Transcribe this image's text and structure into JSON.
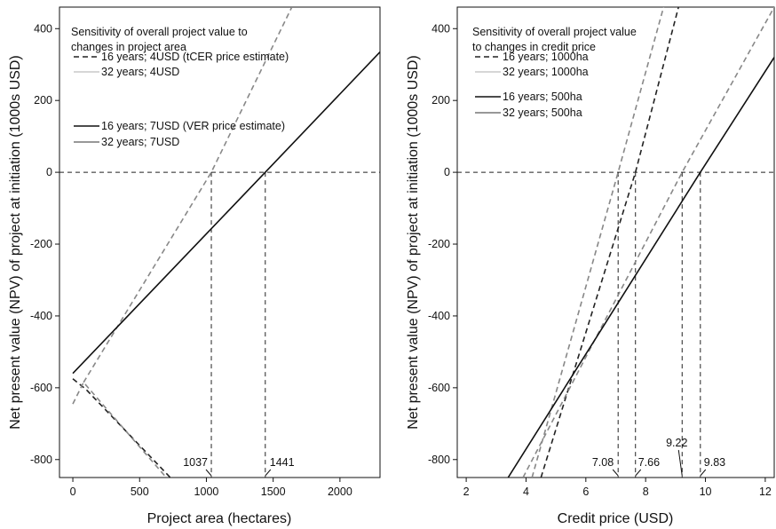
{
  "chart_data": [
    {
      "type": "line",
      "title": "Sensitivity of overall project value to changes in project area",
      "title_lines": [
        "Sensitivity of overall project value to",
        "changes in project area"
      ],
      "xlabel": "Project area (hectares)",
      "ylabel": "Net present value (NPV) of project at initiation (1000s USD)",
      "xlim": [
        -100,
        2300
      ],
      "ylim": [
        -850,
        460
      ],
      "xticks": [
        0,
        500,
        1000,
        1500,
        2000
      ],
      "yticks": [
        -800,
        -600,
        -400,
        -200,
        0,
        200,
        400
      ],
      "xtick_labels": [
        "0",
        "500",
        "1000",
        "1500",
        "2000"
      ],
      "ytick_labels": [
        "-800",
        "-600",
        "-400",
        "-200",
        "0",
        "200",
        "400"
      ],
      "legend_position": "top-left",
      "series": [
        {
          "name": "16 years; 4USD (tCER price estimate)",
          "color": "#222222",
          "dash": "dashed",
          "x": [
            0,
            100,
            1037,
            2300
          ],
          "y": [
            -570,
            -600,
            -850,
            -850
          ]
        },
        {
          "name": "32 years; 4USD",
          "color": "#c8c8c8",
          "dash": "solid",
          "x": [
            0,
            1037
          ],
          "y": [
            -640,
            0
          ]
        },
        {
          "name": "16 years; 7USD (VER price estimate)",
          "color": "#111111",
          "dash": "solid",
          "x": [
            0,
            1441,
            2300
          ],
          "y": [
            -560,
            0,
            335
          ]
        },
        {
          "name": "32 years; 7USD",
          "color": "#777777",
          "dash": "solid",
          "x": [
            0,
            1037
          ],
          "y": [
            -640,
            0
          ]
        }
      ],
      "plotted_lines": [
        {
          "color": "#222222",
          "dash": "dashed",
          "x": [
            0,
            100,
            730
          ],
          "y": [
            -575,
            -605,
            -850
          ]
        },
        {
          "color": "#888888",
          "dash": "dashed",
          "x": [
            0,
            80,
            700
          ],
          "y": [
            -645,
            -585,
            -850
          ]
        },
        {
          "color": "#888888",
          "dash": "dashed",
          "x": [
            80,
            1037,
            1640
          ],
          "y": [
            -585,
            0,
            460
          ]
        },
        {
          "color": "#111111",
          "dash": "solid",
          "x": [
            0,
            1441,
            2300
          ],
          "y": [
            -560,
            0,
            335
          ]
        }
      ],
      "ref_lines": {
        "y0": true,
        "x_vlines": [
          1037,
          1441
        ]
      },
      "annotations": [
        {
          "label": "1037",
          "x": 1037
        },
        {
          "label": "1441",
          "x": 1441
        }
      ]
    },
    {
      "type": "line",
      "title": "Sensitivity of overall project value to changes in credit price",
      "title_lines": [
        "Sensitivity of overall project value",
        "to changes in credit price"
      ],
      "xlabel": "Credit price (USD)",
      "ylabel": "Net present value (NPV) of project at initiation (1000s USD)",
      "xlim": [
        1.7,
        12.3
      ],
      "ylim": [
        -850,
        460
      ],
      "xticks": [
        2,
        4,
        6,
        8,
        10,
        12
      ],
      "yticks": [
        -800,
        -600,
        -400,
        -200,
        0,
        200,
        400
      ],
      "xtick_labels": [
        "2",
        "4",
        "6",
        "8",
        "10",
        "12"
      ],
      "ytick_labels": [
        "-800",
        "-600",
        "-400",
        "-200",
        "0",
        "200",
        "400"
      ],
      "legend_position": "top-left",
      "series": [
        {
          "name": "16 years; 1000ha",
          "color": "#222222",
          "dash": "dashed"
        },
        {
          "name": "32 years; 1000ha",
          "color": "#c8c8c8",
          "dash": "solid"
        },
        {
          "name": "16 years; 500ha",
          "color": "#111111",
          "dash": "solid"
        },
        {
          "name": "32 years; 500ha",
          "color": "#777777",
          "dash": "solid"
        }
      ],
      "plotted_lines": [
        {
          "color": "#888888",
          "dash": "dashed",
          "x": [
            4.2,
            7.08,
            8.6
          ],
          "y": [
            -850,
            0,
            460
          ]
        },
        {
          "color": "#222222",
          "dash": "dashed",
          "x": [
            4.5,
            7.66,
            9.1
          ],
          "y": [
            -850,
            0,
            460
          ]
        },
        {
          "color": "#888888",
          "dash": "dashed",
          "x": [
            3.9,
            9.22,
            12.3
          ],
          "y": [
            -850,
            0,
            460
          ]
        },
        {
          "color": "#111111",
          "dash": "solid",
          "x": [
            3.4,
            9.83,
            12.3
          ],
          "y": [
            -850,
            0,
            320
          ]
        }
      ],
      "ref_lines": {
        "y0": true,
        "x_vlines": [
          7.08,
          7.66,
          9.22,
          9.83
        ]
      },
      "annotations": [
        {
          "label": "7.08",
          "x": 7.08
        },
        {
          "label": "7.66",
          "x": 7.66
        },
        {
          "label": "9.22",
          "x": 9.22
        },
        {
          "label": "9.83",
          "x": 9.83
        }
      ]
    }
  ]
}
